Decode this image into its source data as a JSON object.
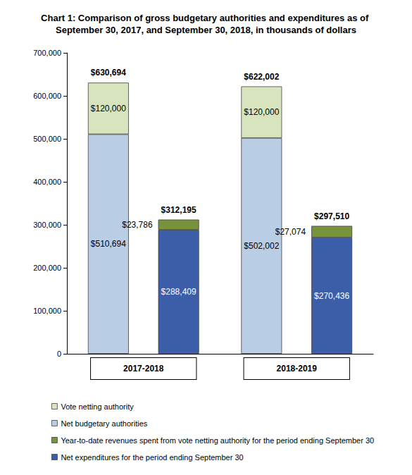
{
  "chart_data": {
    "type": "bar",
    "title": "Chart 1: Comparison of gross budgetary authorities and expenditures as of September 30, 2017, and September 30, 2018, in thousands of dollars",
    "categories": [
      "2017-2018",
      "2018-2019"
    ],
    "stacked": true,
    "data_labels": true,
    "grid": false,
    "legend": "bottom-left",
    "ylim": [
      0,
      700000
    ],
    "yticks": [
      0,
      {
        "value": 100000,
        "label": "100,000"
      },
      {
        "value": 200000,
        "label": "200,000"
      },
      {
        "value": 300000,
        "label": "300,000"
      },
      {
        "value": 400000,
        "label": "400,000"
      },
      {
        "value": 500000,
        "label": "500,000"
      },
      {
        "value": 600000,
        "label": "600,000"
      },
      {
        "value": 700000,
        "label": "700,000"
      }
    ],
    "stacks": [
      {
        "totals": [
          630694,
          622002
        ],
        "total_labels": [
          "$630,694",
          "$622,002"
        ],
        "series": [
          {
            "name": "Net budgetary authorities",
            "color": "#b9cde5",
            "values": [
              510694,
              502002
            ],
            "value_labels": [
              "$510,694",
              "$502,002"
            ]
          },
          {
            "name": "Vote netting authority",
            "color": "#d7e4bd",
            "values": [
              120000,
              120000
            ],
            "value_labels": [
              "$120,000",
              "$120,000"
            ]
          }
        ]
      },
      {
        "totals": [
          312195,
          297510
        ],
        "total_labels": [
          "$312,195",
          "$297,510"
        ],
        "series": [
          {
            "name": "Net expenditures for the period ending September 30",
            "color": "#3c5ea8",
            "values": [
              288409,
              270436
            ],
            "value_labels": [
              "$288,409",
              "$270,436"
            ]
          },
          {
            "name": "Year-to-date revenues spent from vote netting authority for the period ending September 30",
            "color": "#77933c",
            "values": [
              23786,
              27074
            ],
            "value_labels": [
              "$23,786",
              "$27,074"
            ]
          }
        ]
      }
    ]
  }
}
